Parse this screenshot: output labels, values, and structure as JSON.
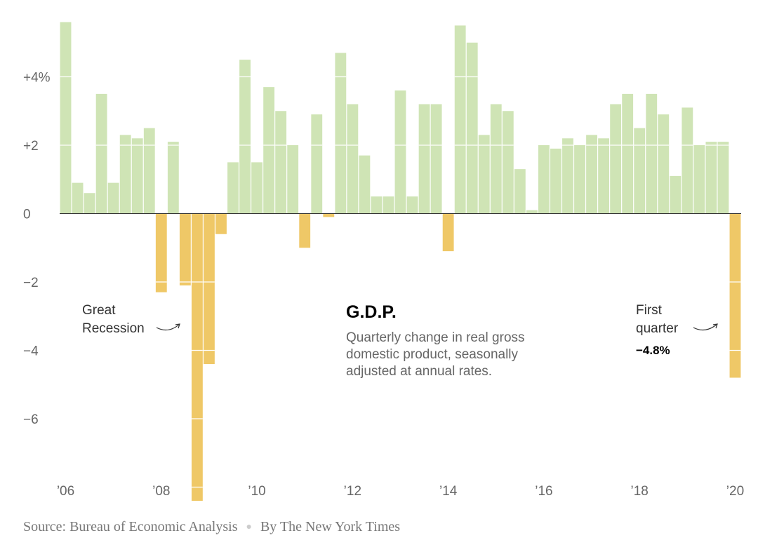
{
  "chart_data": {
    "type": "bar",
    "title": "G.D.P.",
    "subtitle": [
      "Quarterly change in real gross",
      "domestic product, seasonally",
      "adjusted at annual rates."
    ],
    "xlabel": "",
    "ylabel": "",
    "ylim": [
      -8.4,
      5.6
    ],
    "grid": false,
    "y_ticks": [
      {
        "value": 4,
        "label": "+4%"
      },
      {
        "value": 2,
        "label": "+2"
      },
      {
        "value": 0,
        "label": "0"
      },
      {
        "value": -2,
        "label": "−2"
      },
      {
        "value": -4,
        "label": "−4"
      },
      {
        "value": -6,
        "label": "−6"
      }
    ],
    "x_ticks": [
      {
        "quarter_index": 0,
        "label": "’06"
      },
      {
        "quarter_index": 8,
        "label": "’08"
      },
      {
        "quarter_index": 16,
        "label": "’10"
      },
      {
        "quarter_index": 24,
        "label": "’12"
      },
      {
        "quarter_index": 32,
        "label": "’14"
      },
      {
        "quarter_index": 40,
        "label": "’16"
      },
      {
        "quarter_index": 48,
        "label": "’18"
      },
      {
        "quarter_index": 56,
        "label": "’20"
      }
    ],
    "values": [
      5.6,
      0.9,
      0.6,
      3.5,
      0.9,
      2.3,
      2.2,
      2.5,
      -2.3,
      2.1,
      -2.1,
      -8.4,
      -4.4,
      -0.6,
      1.5,
      4.5,
      1.5,
      3.7,
      3.0,
      2.0,
      -1.0,
      2.9,
      -0.1,
      4.7,
      3.2,
      1.7,
      0.5,
      0.5,
      3.6,
      0.5,
      3.2,
      3.2,
      -1.1,
      5.5,
      5.0,
      2.3,
      3.2,
      3.0,
      1.3,
      0.1,
      2.0,
      1.9,
      2.2,
      2.0,
      2.3,
      2.2,
      3.2,
      3.5,
      2.5,
      3.5,
      2.9,
      1.1,
      3.1,
      2.0,
      2.1,
      2.1,
      -4.8
    ],
    "colors": {
      "positive": "#cfe4b5",
      "negative": "#efc867",
      "axis": "#333333"
    },
    "annotations": {
      "great_recession": [
        "Great",
        "Recession"
      ],
      "first_quarter": [
        "First",
        "quarter"
      ],
      "first_quarter_value": "−4.8%"
    }
  },
  "footer": {
    "source": "Source: Bureau of Economic Analysis",
    "byline": "By The New York Times"
  }
}
